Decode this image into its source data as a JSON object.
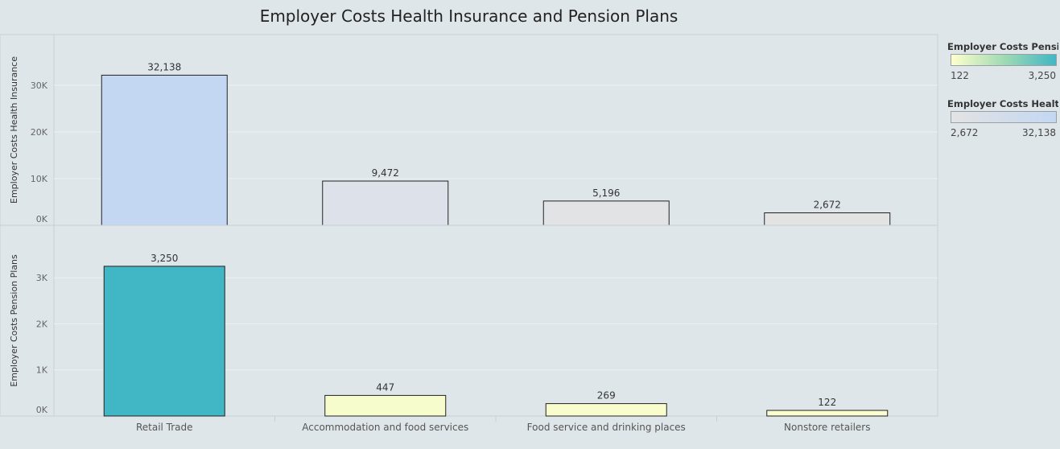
{
  "title": "Employer Costs Health Insurance and Pension Plans",
  "chart_data": [
    {
      "type": "bar",
      "categories": [
        "Retail Trade",
        "Accommodation and food services",
        "Food service and drinking places",
        "Nonstore retailers"
      ],
      "values": [
        32138,
        9472,
        5196,
        2672
      ],
      "value_labels": [
        "32,138",
        "9,472",
        "5,196",
        "2,672"
      ],
      "ylabel": "Employer Costs Health Insurance",
      "ylim": [
        0,
        36000
      ],
      "ticks": [
        0,
        10000,
        20000,
        30000
      ],
      "tick_labels": [
        "0K",
        "10K",
        "20K",
        "30K"
      ],
      "bar_colors": [
        "#c3d7f2",
        "#dde2ea",
        "#e1e3e5",
        "#e3e3e3"
      ],
      "grid": true
    },
    {
      "type": "bar",
      "categories": [
        "Retail Trade",
        "Accommodation and food services",
        "Food service and drinking places",
        "Nonstore retailers"
      ],
      "values": [
        3250,
        447,
        269,
        122
      ],
      "value_labels": [
        "3,250",
        "447",
        "269",
        "122"
      ],
      "ylabel": "Employer Costs Pension Plans",
      "ylim": [
        0,
        3650
      ],
      "ticks": [
        0,
        1000,
        2000,
        3000
      ],
      "tick_labels": [
        "0K",
        "1K",
        "2K",
        "3K"
      ],
      "bar_colors": [
        "#41b6c4",
        "#f6fccc",
        "#f9fdcd",
        "#fbfed0"
      ],
      "grid": true
    }
  ],
  "legends": [
    {
      "title": "Employer Costs Pensio..",
      "min_label": "122",
      "max_label": "3,250",
      "color_start": "#ffffcc",
      "color_mid": "#a1dab4",
      "color_end": "#41b6c4"
    },
    {
      "title": "Employer Costs Health ..",
      "min_label": "2,672",
      "max_label": "32,138",
      "color_start": "#e3e3e3",
      "color_end": "#c3d7f2"
    }
  ]
}
